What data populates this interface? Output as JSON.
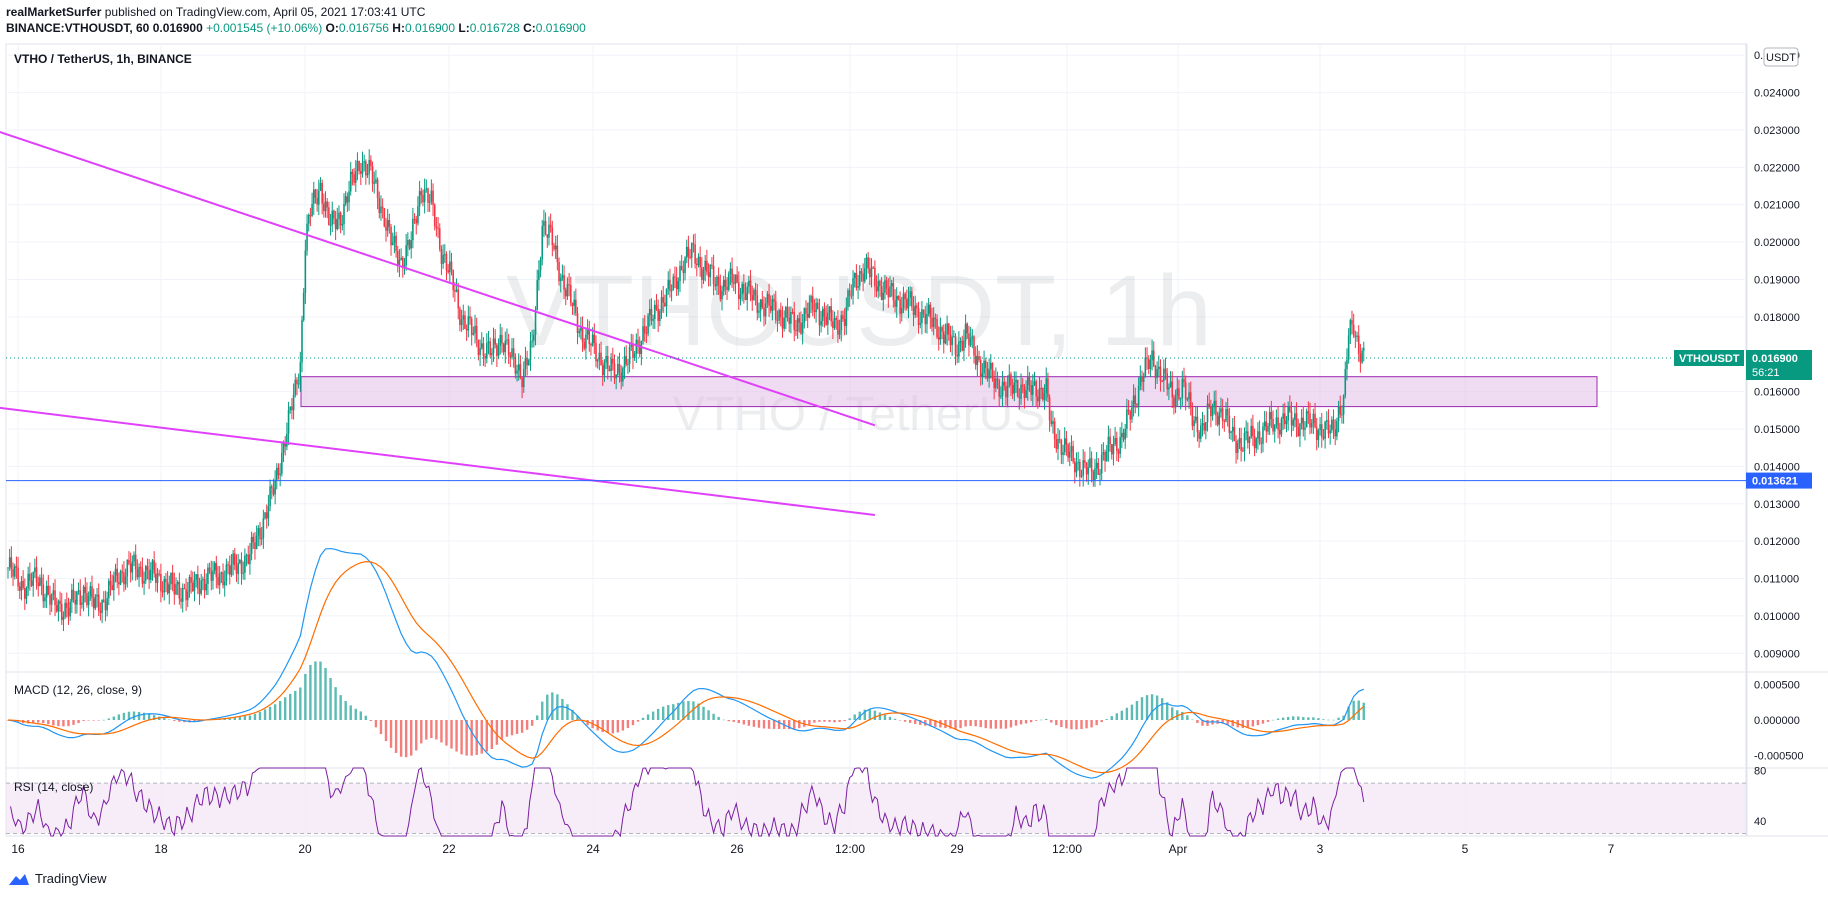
{
  "header": {
    "author": "realMarketSurfer",
    "published": "published on TradingView.com, April 05, 2021 17:03:41 UTC",
    "symbol_line": "BINANCE:VTHOUSDT, 60",
    "last": "0.016900",
    "change": "+0.001545 (+10.06%)",
    "open_label": "O:",
    "open": "0.016756",
    "high_label": "H:",
    "high": "0.016900",
    "low_label": "L:",
    "low": "0.016728",
    "close_label": "C:",
    "close": "0.016900"
  },
  "pane_title": "VTHO / TetherUS, 1h, BINANCE",
  "watermark": {
    "big": "VTHOUSDT, 1h",
    "small": "VTHO / TetherUS"
  },
  "currency_badge": "USDT",
  "macd_label": "MACD (12, 26, close, 9)",
  "rsi_label": "RSI (14, close)",
  "footer_brand": "TradingView",
  "colors": {
    "up": "#089981",
    "down": "#f23645",
    "trend": "#e040fb",
    "zone": "#e1bee7",
    "support": "#2962ff",
    "macd": "#2196f3",
    "signal": "#ff6d00",
    "rsi": "#7b1fa2"
  },
  "chart_data": [
    {
      "type": "candlestick",
      "title": "VTHO / TetherUS, 1h, BINANCE",
      "x_ticks": [
        "16",
        "18",
        "20",
        "22",
        "24",
        "26",
        "12:00",
        "29",
        "12:00",
        "Apr",
        "3",
        "5",
        "7"
      ],
      "y_ticks": [
        "0.025000",
        "0.024000",
        "0.023000",
        "0.022000",
        "0.021000",
        "0.020000",
        "0.019000",
        "0.018000",
        "0.016000",
        "0.015000",
        "0.014000",
        "0.013000",
        "0.012000",
        "0.011000",
        "0.010000",
        "0.009000"
      ],
      "ylim": [
        0.0085,
        0.0253
      ],
      "last_price_label": "VTHOUSDT",
      "last_price": "0.016900",
      "countdown": "56:21",
      "support_level": "0.013621",
      "zone": [
        0.0156,
        0.0164
      ],
      "price_path": [
        [
          0,
          0.0113
        ],
        [
          3,
          0.0108
        ],
        [
          6,
          0.011
        ],
        [
          9,
          0.0103
        ],
        [
          12,
          0.0102
        ],
        [
          15,
          0.0107
        ],
        [
          17,
          0.0103
        ],
        [
          19,
          0.0104
        ],
        [
          22,
          0.0111
        ],
        [
          24,
          0.0113
        ],
        [
          27,
          0.0112
        ],
        [
          30,
          0.011
        ],
        [
          33,
          0.0107
        ],
        [
          36,
          0.0107
        ],
        [
          39,
          0.011
        ],
        [
          42,
          0.0111
        ],
        [
          45,
          0.0113
        ],
        [
          48,
          0.0116
        ],
        [
          50,
          0.0123
        ],
        [
          53,
          0.0135
        ],
        [
          55,
          0.0148
        ],
        [
          57,
          0.016
        ],
        [
          58,
          0.0168
        ],
        [
          59,
          0.02
        ],
        [
          60,
          0.0208
        ],
        [
          62,
          0.0215
        ],
        [
          64,
          0.0204
        ],
        [
          66,
          0.0207
        ],
        [
          68,
          0.0215
        ],
        [
          70,
          0.0222
        ],
        [
          72,
          0.0218
        ],
        [
          74,
          0.021
        ],
        [
          76,
          0.02
        ],
        [
          78,
          0.0195
        ],
        [
          80,
          0.02
        ],
        [
          82,
          0.0215
        ],
        [
          84,
          0.021
        ],
        [
          86,
          0.0198
        ],
        [
          88,
          0.019
        ],
        [
          90,
          0.018
        ],
        [
          92,
          0.0176
        ],
        [
          94,
          0.0172
        ],
        [
          96,
          0.017
        ],
        [
          98,
          0.0175
        ],
        [
          100,
          0.0168
        ],
        [
          102,
          0.0165
        ],
        [
          104,
          0.0171
        ],
        [
          106,
          0.0205
        ],
        [
          108,
          0.02
        ],
        [
          110,
          0.019
        ],
        [
          112,
          0.0183
        ],
        [
          114,
          0.0175
        ],
        [
          116,
          0.0172
        ],
        [
          118,
          0.0168
        ],
        [
          120,
          0.0165
        ],
        [
          122,
          0.0167
        ],
        [
          124,
          0.017
        ],
        [
          126,
          0.0176
        ],
        [
          128,
          0.018
        ],
        [
          130,
          0.0185
        ],
        [
          132,
          0.0188
        ],
        [
          134,
          0.0195
        ],
        [
          136,
          0.0197
        ],
        [
          138,
          0.0193
        ],
        [
          140,
          0.019
        ],
        [
          142,
          0.0188
        ],
        [
          144,
          0.019
        ],
        [
          146,
          0.0187
        ],
        [
          148,
          0.0185
        ],
        [
          150,
          0.0183
        ],
        [
          152,
          0.0182
        ],
        [
          154,
          0.018
        ],
        [
          156,
          0.0178
        ],
        [
          158,
          0.018
        ],
        [
          160,
          0.0183
        ],
        [
          162,
          0.018
        ],
        [
          164,
          0.0178
        ],
        [
          166,
          0.018
        ],
        [
          168,
          0.019
        ],
        [
          170,
          0.0193
        ],
        [
          172,
          0.019
        ],
        [
          174,
          0.0187
        ],
        [
          176,
          0.0185
        ],
        [
          178,
          0.0184
        ],
        [
          180,
          0.0182
        ],
        [
          182,
          0.018
        ],
        [
          184,
          0.0178
        ],
        [
          186,
          0.0175
        ],
        [
          188,
          0.0172
        ],
        [
          190,
          0.0175
        ],
        [
          192,
          0.017
        ],
        [
          194,
          0.0165
        ],
        [
          196,
          0.0163
        ],
        [
          198,
          0.016
        ],
        [
          200,
          0.0162
        ],
        [
          202,
          0.016
        ],
        [
          204,
          0.0161
        ],
        [
          206,
          0.016
        ],
        [
          207,
          0.015
        ],
        [
          209,
          0.0146
        ],
        [
          211,
          0.0142
        ],
        [
          213,
          0.014
        ],
        [
          215,
          0.0138
        ],
        [
          217,
          0.0142
        ],
        [
          219,
          0.0145
        ],
        [
          221,
          0.0148
        ],
        [
          223,
          0.0155
        ],
        [
          225,
          0.0165
        ],
        [
          227,
          0.0168
        ],
        [
          229,
          0.0165
        ],
        [
          231,
          0.0158
        ],
        [
          233,
          0.0162
        ],
        [
          235,
          0.0153
        ],
        [
          237,
          0.015
        ],
        [
          239,
          0.0156
        ],
        [
          241,
          0.0154
        ],
        [
          243,
          0.0148
        ],
        [
          245,
          0.0146
        ],
        [
          247,
          0.0148
        ],
        [
          249,
          0.0149
        ],
        [
          251,
          0.0152
        ],
        [
          253,
          0.0152
        ],
        [
          255,
          0.0153
        ],
        [
          257,
          0.0151
        ],
        [
          259,
          0.0152
        ],
        [
          261,
          0.0149
        ],
        [
          263,
          0.015
        ],
        [
          264,
          0.0155
        ],
        [
          265,
          0.0157
        ],
        [
          266,
          0.0175
        ],
        [
          267,
          0.0178
        ],
        [
          268,
          0.0172
        ],
        [
          269,
          0.0169
        ]
      ],
      "trendlines": [
        {
          "name": "descending-resistance",
          "from": [
            -36,
            0.0245
          ],
          "to": [
            172,
            0.0151
          ]
        },
        {
          "name": "descending-support",
          "from": [
            -34,
            0.0161
          ],
          "to": [
            172,
            0.0127
          ]
        }
      ]
    },
    {
      "type": "line",
      "title": "MACD (12, 26, close, 9)",
      "y_ticks": [
        "0.000500",
        "0.000000",
        "-0.000500"
      ],
      "ylim": [
        -0.00068,
        0.00068
      ]
    },
    {
      "type": "line",
      "title": "RSI (14, close)",
      "y_ticks": [
        "80",
        "40"
      ],
      "ylim": [
        28,
        82
      ],
      "band": [
        30,
        70
      ]
    }
  ]
}
